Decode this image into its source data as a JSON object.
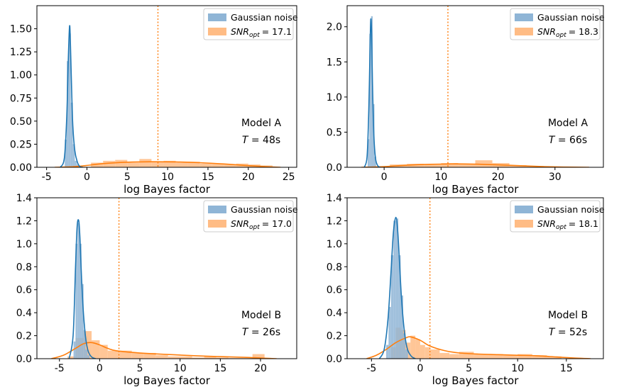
{
  "colors": {
    "noise": "#1f77b4",
    "noise_fill": "#8fb5d6",
    "signal": "#ff7f0e",
    "signal_fill": "#ffbc85"
  },
  "chart_data": [
    {
      "type": "bar",
      "xlabel": "log Bayes factor",
      "xlim": [
        -6.2,
        26
      ],
      "ylim": [
        0,
        1.75
      ],
      "xticks": [
        -5,
        0,
        5,
        10,
        15,
        20,
        25
      ],
      "yticks": [
        0.0,
        0.25,
        0.5,
        0.75,
        1.0,
        1.25,
        1.5
      ],
      "ytick_labels": [
        "0.00",
        "0.25",
        "0.50",
        "0.75",
        "1.00",
        "1.25",
        "1.50"
      ],
      "threshold": 8.8,
      "legend": {
        "position": "top-right",
        "noise_label": "Gaussian noise",
        "signal_prefix": "SNR",
        "signal_sub": "opt",
        "signal_value": "= 17.1"
      },
      "annotation": {
        "model": "Model A",
        "t_var": "T",
        "t_value": " = 48s"
      },
      "noise_hist": {
        "edges": [
          -2.75,
          -2.5,
          -2.25,
          -2.0,
          -1.75,
          -1.5,
          -1.25,
          -1.0
        ],
        "heights": [
          0.3,
          1.15,
          1.45,
          0.7,
          0.25,
          0.07,
          0.03
        ]
      },
      "noise_kde": {
        "x": [
          -3.3,
          -2.8,
          -2.5,
          -2.3,
          -2.15,
          -2.05,
          -1.9,
          -1.75,
          -1.5,
          -1.2,
          -0.9,
          -0.5
        ],
        "y": [
          0.0,
          0.1,
          0.55,
          1.2,
          1.53,
          1.35,
          0.85,
          0.45,
          0.18,
          0.06,
          0.01,
          0.0
        ]
      },
      "signal_hist": {
        "edges": [
          -3,
          0.5,
          2,
          3.5,
          5,
          6.5,
          8,
          9.5,
          11,
          12.5,
          14,
          15.5,
          17,
          18.5,
          20,
          21.5,
          23
        ],
        "heights": [
          0.005,
          0.05,
          0.07,
          0.08,
          0.05,
          0.09,
          0.06,
          0.07,
          0.05,
          0.06,
          0.04,
          0.04,
          0.03,
          0.04,
          0.03,
          0.02
        ]
      },
      "signal_kde": {
        "x": [
          -4,
          -2,
          0,
          2,
          5,
          8,
          11,
          14,
          17,
          20,
          22,
          24
        ],
        "y": [
          0.0,
          0.005,
          0.02,
          0.04,
          0.055,
          0.06,
          0.058,
          0.05,
          0.036,
          0.018,
          0.008,
          0.0
        ]
      }
    },
    {
      "type": "bar",
      "xlabel": "log Bayes factor",
      "xlim": [
        -6.5,
        38.5
      ],
      "ylim": [
        0,
        2.3
      ],
      "xticks": [
        0,
        10,
        20,
        30
      ],
      "yticks": [
        0.0,
        0.5,
        1.0,
        1.5,
        2.0
      ],
      "ytick_labels": [
        "0.0",
        "0.5",
        "1.0",
        "1.5",
        "2.0"
      ],
      "threshold": 11.2,
      "legend": {
        "position": "top-right",
        "noise_label": "Gaussian noise",
        "signal_prefix": "SNR",
        "signal_sub": "opt",
        "signal_value": "= 18.3"
      },
      "annotation": {
        "model": "Model A",
        "t_var": "T",
        "t_value": " = 66s"
      },
      "noise_hist": {
        "edges": [
          -2.9,
          -2.6,
          -2.3,
          -2.0,
          -1.7,
          -1.4
        ],
        "heights": [
          0.4,
          1.9,
          2.15,
          0.9,
          0.15
        ]
      },
      "noise_kde": {
        "x": [
          -3.5,
          -3.0,
          -2.7,
          -2.5,
          -2.35,
          -2.2,
          -2.05,
          -1.8,
          -1.5,
          -1.1,
          -0.7
        ],
        "y": [
          0.0,
          0.15,
          0.8,
          1.6,
          2.1,
          1.9,
          1.2,
          0.45,
          0.12,
          0.02,
          0.0
        ]
      },
      "signal_hist": {
        "edges": [
          -2,
          1,
          4,
          7,
          10,
          13,
          16,
          19,
          22,
          25,
          28
        ],
        "heights": [
          0.01,
          0.04,
          0.05,
          0.04,
          0.06,
          0.05,
          0.1,
          0.06,
          0.03,
          0.02
        ]
      },
      "signal_kde": {
        "x": [
          -4,
          0,
          4,
          8,
          12,
          16,
          20,
          24,
          28,
          32,
          36
        ],
        "y": [
          0.0,
          0.01,
          0.03,
          0.042,
          0.048,
          0.045,
          0.035,
          0.022,
          0.01,
          0.003,
          0.0
        ]
      }
    },
    {
      "type": "bar",
      "xlabel": "log Bayes factor",
      "xlim": [
        -7.8,
        24.5
      ],
      "ylim": [
        0,
        1.4
      ],
      "xticks": [
        -5,
        0,
        5,
        10,
        15,
        20
      ],
      "yticks": [
        0.0,
        0.2,
        0.4,
        0.6,
        0.8,
        1.0,
        1.2,
        1.4
      ],
      "ytick_labels": [
        "0.0",
        "0.2",
        "0.4",
        "0.6",
        "0.8",
        "1.0",
        "1.2",
        "1.4"
      ],
      "threshold": 2.4,
      "legend": {
        "position": "top-right",
        "noise_label": "Gaussian noise",
        "signal_prefix": "SNR",
        "signal_sub": "opt",
        "signal_value": "= 17.0"
      },
      "annotation": {
        "model": "Model B",
        "t_var": "T",
        "t_value": " = 26s"
      },
      "noise_hist": {
        "edges": [
          -3.25,
          -3.0,
          -2.75,
          -2.5,
          -2.25,
          -2.0,
          -1.75,
          -1.5,
          -1.25
        ],
        "heights": [
          0.15,
          1.0,
          1.18,
          1.0,
          0.65,
          0.25,
          0.08,
          0.03
        ]
      },
      "noise_kde": {
        "x": [
          -3.8,
          -3.3,
          -3.0,
          -2.8,
          -2.6,
          -2.45,
          -2.25,
          -2.0,
          -1.7,
          -1.4,
          -1.0,
          -0.5
        ],
        "y": [
          0.0,
          0.2,
          0.8,
          1.15,
          1.2,
          1.05,
          0.7,
          0.38,
          0.16,
          0.06,
          0.015,
          0.0
        ]
      },
      "signal_hist": {
        "edges": [
          -4,
          -3,
          -2,
          -1,
          0,
          1,
          2.5,
          4,
          5.5,
          7,
          8.5,
          10,
          11.5,
          13,
          14.5,
          16,
          17.5,
          19,
          20.5
        ],
        "heights": [
          0.02,
          0.18,
          0.24,
          0.16,
          0.12,
          0.07,
          0.07,
          0.05,
          0.05,
          0.03,
          0.02,
          0.02,
          0.01,
          0.02,
          0.01,
          0.005,
          0.005,
          0.04
        ]
      },
      "signal_kde": {
        "x": [
          -6,
          -4.5,
          -3,
          -2,
          -1,
          0,
          1,
          2,
          4,
          6,
          9,
          12,
          15,
          18,
          20,
          22
        ],
        "y": [
          0.0,
          0.03,
          0.09,
          0.13,
          0.14,
          0.12,
          0.09,
          0.07,
          0.055,
          0.045,
          0.035,
          0.025,
          0.018,
          0.012,
          0.006,
          0.0
        ]
      }
    },
    {
      "type": "bar",
      "xlabel": "log Bayes factor",
      "xlim": [
        -7.5,
        18.8
      ],
      "ylim": [
        0,
        1.4
      ],
      "xticks": [
        -5,
        0,
        5,
        10,
        15
      ],
      "yticks": [
        0.0,
        0.2,
        0.4,
        0.6,
        0.8,
        1.0,
        1.2,
        1.4
      ],
      "ytick_labels": [
        "0.0",
        "0.2",
        "0.4",
        "0.6",
        "0.8",
        "1.0",
        "1.2",
        "1.4"
      ],
      "threshold": 1.0,
      "legend": {
        "position": "top-right",
        "noise_label": "Gaussian noise",
        "signal_prefix": "SNR",
        "signal_sub": "opt",
        "signal_value": "= 18.1"
      },
      "annotation": {
        "model": "Model B",
        "t_var": "T",
        "t_value": " = 52s"
      },
      "noise_hist": {
        "edges": [
          -3.5,
          -3.25,
          -3.0,
          -2.75,
          -2.5,
          -2.25,
          -2.0,
          -1.75,
          -1.5,
          -1.25
        ],
        "heights": [
          0.12,
          0.45,
          0.9,
          1.2,
          1.22,
          0.9,
          0.55,
          0.22,
          0.08
        ]
      },
      "noise_kde": {
        "x": [
          -4.2,
          -3.7,
          -3.3,
          -3.0,
          -2.75,
          -2.5,
          -2.3,
          -2.1,
          -1.9,
          -1.6,
          -1.3,
          -0.9,
          -0.5
        ],
        "y": [
          0.0,
          0.08,
          0.35,
          0.75,
          1.1,
          1.23,
          1.1,
          0.8,
          0.5,
          0.22,
          0.08,
          0.02,
          0.0
        ]
      },
      "signal_hist": {
        "edges": [
          -3,
          -2.5,
          -2,
          -1.5,
          -1,
          -0.5,
          0,
          0.5,
          1,
          2,
          3,
          4,
          5.5,
          7,
          8.5,
          10,
          11.5,
          13,
          14.5
        ],
        "heights": [
          0.1,
          0.27,
          0.25,
          0.14,
          0.2,
          0.17,
          0.12,
          0.1,
          0.08,
          0.05,
          0.04,
          0.06,
          0.04,
          0.04,
          0.03,
          0.04,
          0.03,
          0.02
        ]
      },
      "signal_kde": {
        "x": [
          -5.5,
          -4.5,
          -3.5,
          -2.5,
          -1.5,
          -1,
          0,
          1,
          2.5,
          4,
          6,
          8,
          10,
          12,
          14,
          16,
          17.5
        ],
        "y": [
          0.0,
          0.03,
          0.08,
          0.14,
          0.18,
          0.19,
          0.16,
          0.11,
          0.07,
          0.05,
          0.04,
          0.035,
          0.03,
          0.025,
          0.015,
          0.005,
          0.0
        ]
      }
    }
  ]
}
